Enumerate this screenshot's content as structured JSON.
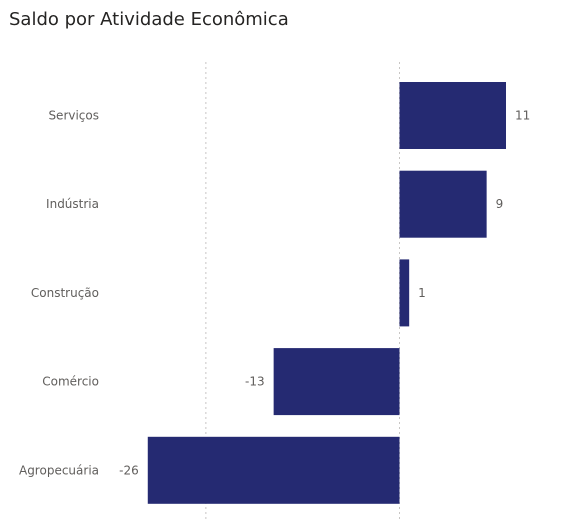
{
  "chart_data": {
    "type": "bar",
    "orientation": "horizontal",
    "title": "Saldo por Atividade Econômica",
    "categories": [
      "Serviços",
      "Indústria",
      "Construção",
      "Comércio",
      "Agropecuária"
    ],
    "values": [
      11,
      9,
      1,
      -13,
      -26
    ],
    "value_labels": [
      "11",
      "9",
      "1",
      "-13",
      "-26"
    ],
    "xlim": [
      -26,
      11
    ],
    "xlabel": "",
    "ylabel": "",
    "grid": "vertical dotted",
    "legend": "none",
    "bar_color": "#252a72"
  }
}
